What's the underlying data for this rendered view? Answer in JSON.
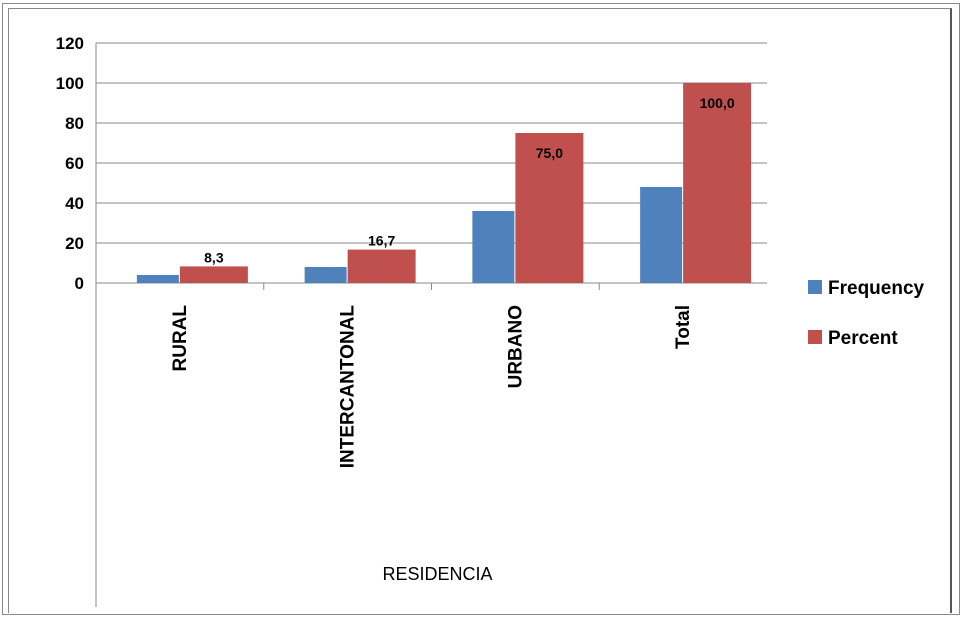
{
  "chart_data": {
    "type": "bar",
    "categories": [
      "RURAL",
      "INTERCANTONAL",
      "URBANO",
      "Total"
    ],
    "series": [
      {
        "name": "Frequency",
        "values": [
          4,
          8,
          36,
          48
        ],
        "color": "#4f81bd",
        "data_labels": [
          "",
          "",
          "",
          ""
        ]
      },
      {
        "name": "Percent",
        "values": [
          8.3,
          16.7,
          75.0,
          100.0
        ],
        "color": "#c0504d",
        "data_labels": [
          "8,3",
          "16,7",
          "75,0",
          "100,0"
        ]
      }
    ],
    "ylim": [
      0,
      120
    ],
    "yticks": [
      "0",
      "20",
      "40",
      "60",
      "80",
      "100",
      "120"
    ],
    "ytick_values": [
      0,
      20,
      40,
      60,
      80,
      100,
      120
    ],
    "xlabel": "RESIDENCIA",
    "ylabel": "",
    "grid": true,
    "legend_position": "right"
  }
}
